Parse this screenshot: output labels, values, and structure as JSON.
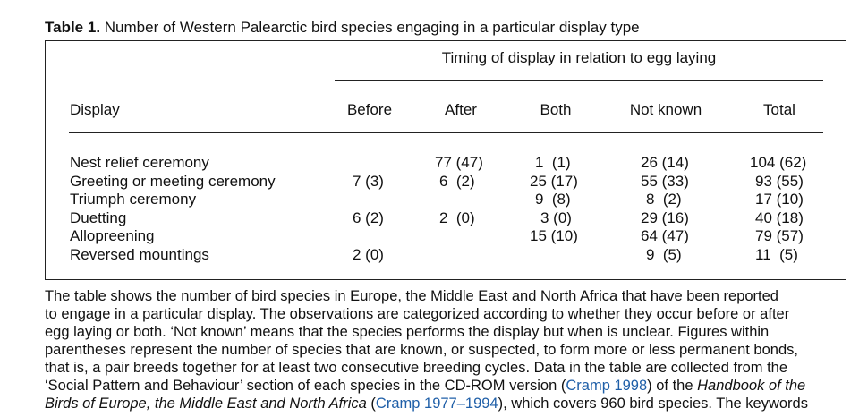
{
  "caption": {
    "label": "Table 1.",
    "text": "Number of Western Palearctic bird species engaging in a particular display type"
  },
  "table": {
    "span_header": "Timing of display in relation to egg laying",
    "columns": [
      "Display",
      "Before",
      "After",
      "Both",
      "Not known",
      "Total"
    ],
    "rows": [
      {
        "display": "Nest relief ceremony",
        "before": "",
        "after": "77 (47)",
        "both": "1  (1)",
        "not_known": "26 (14)",
        "total": "104 (62)"
      },
      {
        "display": "Greeting or meeting ceremony",
        "before": "7 (3)",
        "after": "6  (2)",
        "both": "25 (17)",
        "not_known": "55 (33)",
        "total": "93 (55)"
      },
      {
        "display": "Triumph ceremony",
        "before": "",
        "after": "",
        "both": "9  (8)",
        "not_known": "8  (2)",
        "total": "17 (10)"
      },
      {
        "display": "Duetting",
        "before": "6 (2)",
        "after": "2  (0)",
        "both": "3 (0)",
        "not_known": "29 (16)",
        "total": "40 (18)"
      },
      {
        "display": "Allopreening",
        "before": "",
        "after": "",
        "both": "15 (10)",
        "not_known": "64 (47)",
        "total": "79 (57)"
      },
      {
        "display": "Reversed mountings",
        "before": "2 (0)",
        "after": "",
        "both": "",
        "not_known": "9  (5)",
        "total": "11  (5)"
      }
    ]
  },
  "paragraph": {
    "line1": "The table shows the number of bird species in Europe, the Middle East and North Africa that have been reported",
    "line2": "to engage in a particular display. The observations are categorized according to whether they occur before or after",
    "line3": "egg laying or both. ‘Not known’ means that the species performs the display but when is unclear. Figures within",
    "line4": "parentheses represent the number of species that are known, or suspected, to form more or less permanent bonds,",
    "line5": "that is, a pair breeds together for at least two consecutive breeding cycles. Data in the table are collected from the",
    "line6_a": "‘Social Pattern and Behaviour’ section of each species in the CD-ROM version (",
    "line6_link": "Cramp 1998",
    "line6_b": ") of the ",
    "line6_ital": "Handbook of the",
    "line7_ital": "Birds of Europe, the Middle East and North Africa",
    "line7_a": " (",
    "line7_link": "Cramp 1977–1994",
    "line7_b": "), which covers 960 bird species. The keywords"
  }
}
